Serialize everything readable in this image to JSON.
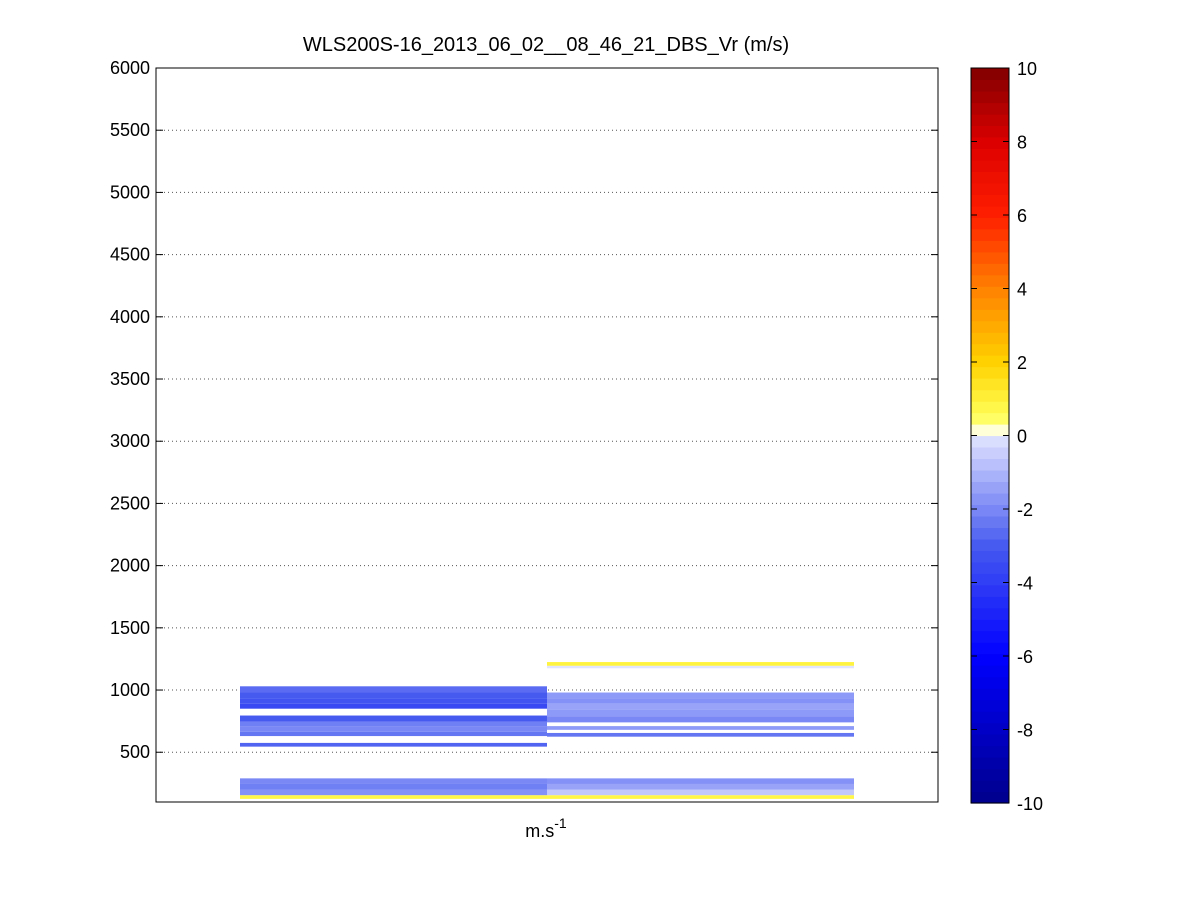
{
  "chart_data": {
    "type": "heatmap",
    "title": "WLS200S-16_2013_06_02__08_46_21_DBS_Vr (m/s)",
    "xlabel_base": "m.s",
    "xlabel_sup": "-1",
    "ylabel": "",
    "ylim": [
      100,
      6000
    ],
    "yticks": [
      500,
      1000,
      1500,
      2000,
      2500,
      3000,
      3500,
      4000,
      4500,
      5000,
      5500,
      6000
    ],
    "grid": "horizontal-dotted",
    "colorbar": {
      "range": [
        -10,
        10
      ],
      "ticks": [
        -10,
        -8,
        -6,
        -4,
        -2,
        0,
        2,
        4,
        6,
        8,
        10
      ],
      "colormap": "blue-white-yellow-red"
    },
    "columns": [
      {
        "name": "",
        "cells": [
          {
            "y0": 125,
            "y1": 155,
            "v": 0.8
          },
          {
            "y0": 155,
            "y1": 200,
            "v": -1.8
          },
          {
            "y0": 200,
            "y1": 245,
            "v": -2.2
          },
          {
            "y0": 245,
            "y1": 290,
            "v": -2.0
          },
          {
            "y0": 545,
            "y1": 575,
            "v": -2.8
          },
          {
            "y0": 630,
            "y1": 665,
            "v": -2.4
          },
          {
            "y0": 665,
            "y1": 705,
            "v": -2.0
          },
          {
            "y0": 705,
            "y1": 745,
            "v": -2.2
          },
          {
            "y0": 745,
            "y1": 795,
            "v": -3.0
          },
          {
            "y0": 850,
            "y1": 890,
            "v": -3.6
          },
          {
            "y0": 890,
            "y1": 935,
            "v": -3.2
          },
          {
            "y0": 935,
            "y1": 980,
            "v": -3.0
          },
          {
            "y0": 980,
            "y1": 1030,
            "v": -2.6
          }
        ]
      },
      {
        "name": "",
        "cells": [
          {
            "y0": 125,
            "y1": 155,
            "v": 0.8
          },
          {
            "y0": 155,
            "y1": 200,
            "v": -0.6
          },
          {
            "y0": 200,
            "y1": 245,
            "v": -1.4
          },
          {
            "y0": 245,
            "y1": 290,
            "v": -1.8
          },
          {
            "y0": 625,
            "y1": 655,
            "v": -2.4
          },
          {
            "y0": 680,
            "y1": 710,
            "v": -1.6
          },
          {
            "y0": 740,
            "y1": 790,
            "v": -2.0
          },
          {
            "y0": 790,
            "y1": 840,
            "v": -1.6
          },
          {
            "y0": 840,
            "y1": 890,
            "v": -1.4
          },
          {
            "y0": 890,
            "y1": 935,
            "v": -1.8
          },
          {
            "y0": 935,
            "y1": 980,
            "v": -1.6
          },
          {
            "y0": 1175,
            "y1": 1195,
            "v": 0.0
          },
          {
            "y0": 1195,
            "y1": 1225,
            "v": 0.9
          }
        ]
      }
    ]
  },
  "colors": {
    "axis": "#000000",
    "grid": "#555555",
    "background": "#ffffff"
  }
}
